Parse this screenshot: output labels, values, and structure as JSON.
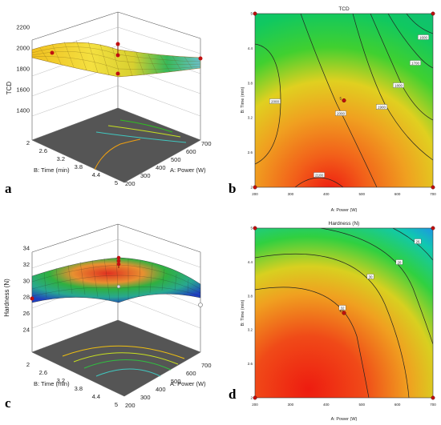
{
  "panels": {
    "a": "a",
    "b": "b",
    "c": "c",
    "d": "d"
  },
  "chart_data": [
    {
      "panel": "a",
      "type": "surface",
      "title": "",
      "xlabel": "A: Power (W)",
      "ylabel": "B: Time (min)",
      "zlabel": "TCD",
      "x_ticks": [
        "200",
        "300",
        "400",
        "500",
        "600",
        "700"
      ],
      "y_ticks": [
        "2",
        "2.6",
        "3.2",
        "3.8",
        "4.4",
        "5"
      ],
      "z_ticks": [
        "1400",
        "1600",
        "1800",
        "2000",
        "2200"
      ],
      "xlim": [
        200,
        700
      ],
      "ylim": [
        2,
        5
      ],
      "zlim": [
        1400,
        2200
      ],
      "colormap": "red-yellow-green-blue"
    },
    {
      "panel": "b",
      "type": "contour",
      "title": "TCD",
      "xlabel": "A: Power (W)",
      "ylabel": "B: Time (min)",
      "x_ticks": [
        "200",
        "300",
        "400",
        "500",
        "600",
        "700"
      ],
      "y_ticks": [
        "2",
        "2.6",
        "3.2",
        "3.8",
        "4.4",
        "5"
      ],
      "xlim": [
        200,
        700
      ],
      "ylim": [
        2,
        5
      ],
      "contour_labels": [
        "2100",
        "2000",
        "2000",
        "1900",
        "1800",
        "1700",
        "1600"
      ],
      "design_point_label": "5",
      "design_point": {
        "x": 450,
        "y": 3.5
      }
    },
    {
      "panel": "c",
      "type": "surface",
      "title": "",
      "xlabel": "A: Power (W)",
      "ylabel": "B: Time (min)",
      "zlabel": "Hardness (N)",
      "x_ticks": [
        "200",
        "300",
        "400",
        "500",
        "600",
        "700"
      ],
      "y_ticks": [
        "2",
        "2.6",
        "3.2",
        "3.8",
        "4.4",
        "5"
      ],
      "z_ticks": [
        "24",
        "26",
        "28",
        "30",
        "32",
        "34"
      ],
      "xlim": [
        200,
        700
      ],
      "ylim": [
        2,
        5
      ],
      "zlim": [
        24,
        34
      ],
      "colormap": "red-yellow-green-blue"
    },
    {
      "panel": "d",
      "type": "contour",
      "title": "Hardness (N)",
      "xlabel": "A: Power (W)",
      "ylabel": "B: Time (min)",
      "x_ticks": [
        "200",
        "300",
        "400",
        "500",
        "600",
        "700"
      ],
      "y_ticks": [
        "2",
        "2.6",
        "3.2",
        "3.8",
        "4.4",
        "5"
      ],
      "xlim": [
        200,
        700
      ],
      "ylim": [
        2,
        5
      ],
      "contour_labels": [
        "32",
        "30",
        "28",
        "26"
      ],
      "design_point_label": "5",
      "design_point": {
        "x": 450,
        "y": 3.5
      }
    }
  ]
}
